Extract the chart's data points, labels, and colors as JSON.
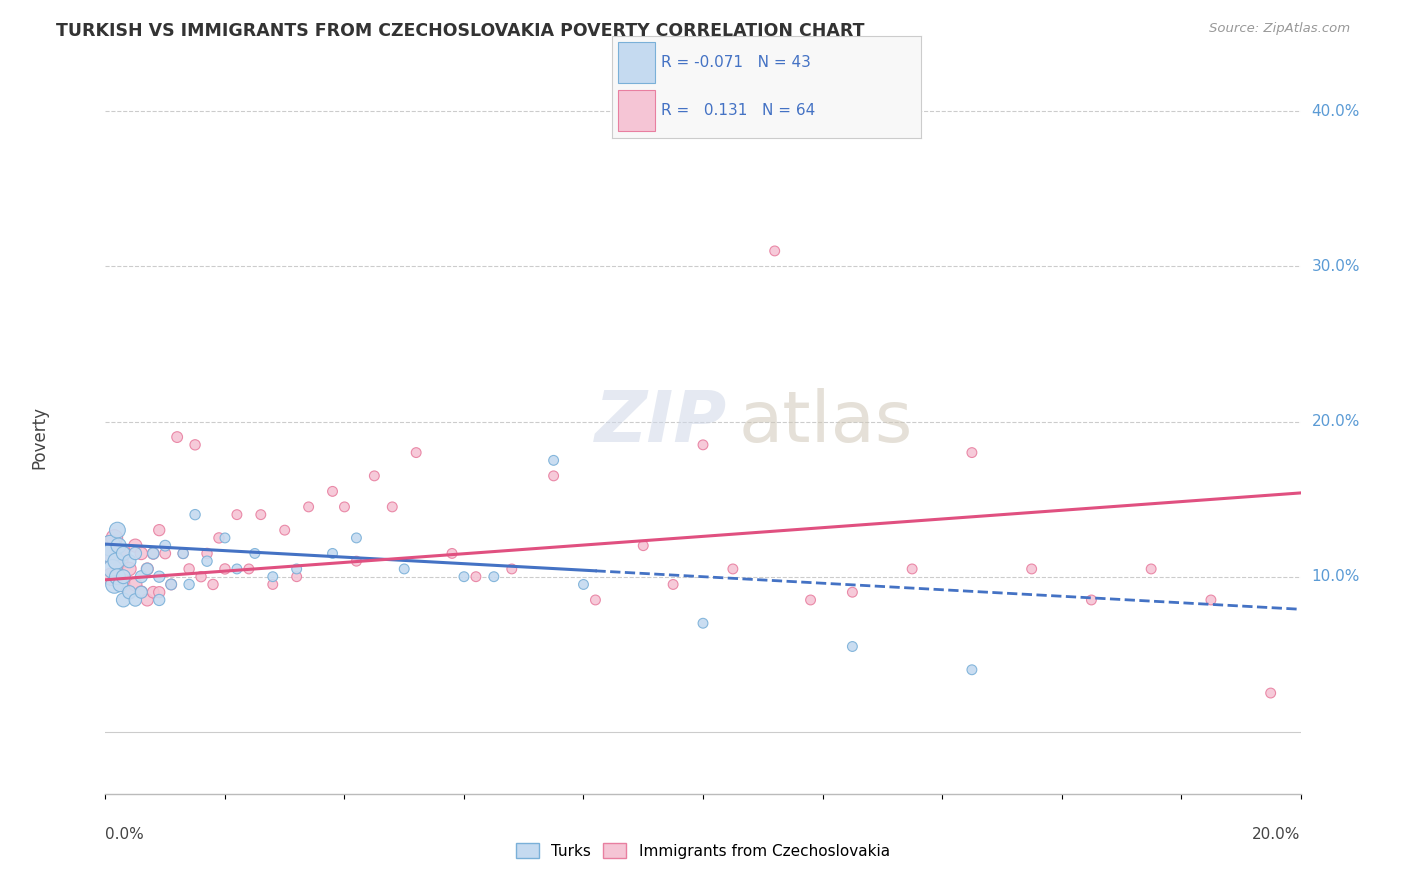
{
  "title": "TURKISH VS IMMIGRANTS FROM CZECHOSLOVAKIA POVERTY CORRELATION CHART",
  "source": "Source: ZipAtlas.com",
  "ylabel": "Poverty",
  "turks_R": -0.071,
  "turks_N": 43,
  "czech_R": 0.131,
  "czech_N": 64,
  "legend_label_turks": "Turks",
  "legend_label_czech": "Immigrants from Czechoslovakia",
  "turks_color": "#c5daf0",
  "turks_edge_color": "#7ab0d8",
  "turks_line_color": "#4472c4",
  "czech_color": "#f5c5d5",
  "czech_edge_color": "#e87fa0",
  "czech_line_color": "#e05080",
  "corr_text_color": "#4472c4",
  "right_tick_color": "#5b9bd5",
  "turks_x": [
    0.0008,
    0.001,
    0.0012,
    0.0015,
    0.0018,
    0.002,
    0.002,
    0.0022,
    0.0025,
    0.003,
    0.003,
    0.003,
    0.004,
    0.004,
    0.005,
    0.005,
    0.006,
    0.006,
    0.007,
    0.008,
    0.009,
    0.009,
    0.01,
    0.011,
    0.013,
    0.014,
    0.015,
    0.017,
    0.02,
    0.022,
    0.025,
    0.028,
    0.032,
    0.038,
    0.042,
    0.05,
    0.06,
    0.065,
    0.075,
    0.08,
    0.1,
    0.125,
    0.145
  ],
  "turks_y": [
    0.12,
    0.115,
    0.105,
    0.095,
    0.11,
    0.13,
    0.1,
    0.12,
    0.095,
    0.115,
    0.1,
    0.085,
    0.11,
    0.09,
    0.115,
    0.085,
    0.1,
    0.09,
    0.105,
    0.115,
    0.1,
    0.085,
    0.12,
    0.095,
    0.115,
    0.095,
    0.14,
    0.11,
    0.125,
    0.105,
    0.115,
    0.1,
    0.105,
    0.115,
    0.125,
    0.105,
    0.1,
    0.1,
    0.175,
    0.095,
    0.07,
    0.055,
    0.04
  ],
  "turks_sizes": [
    220,
    200,
    180,
    160,
    140,
    130,
    130,
    120,
    110,
    100,
    100,
    100,
    90,
    90,
    80,
    80,
    75,
    75,
    70,
    65,
    65,
    65,
    60,
    60,
    55,
    55,
    55,
    55,
    50,
    50,
    50,
    50,
    50,
    50,
    50,
    50,
    50,
    50,
    50,
    50,
    50,
    50,
    50
  ],
  "czech_x": [
    0.0005,
    0.001,
    0.001,
    0.0015,
    0.002,
    0.002,
    0.0025,
    0.003,
    0.003,
    0.004,
    0.004,
    0.005,
    0.005,
    0.006,
    0.006,
    0.007,
    0.007,
    0.008,
    0.008,
    0.009,
    0.009,
    0.01,
    0.011,
    0.012,
    0.013,
    0.014,
    0.015,
    0.016,
    0.017,
    0.018,
    0.019,
    0.02,
    0.022,
    0.024,
    0.026,
    0.028,
    0.03,
    0.032,
    0.034,
    0.038,
    0.04,
    0.042,
    0.045,
    0.048,
    0.052,
    0.058,
    0.062,
    0.068,
    0.075,
    0.082,
    0.09,
    0.095,
    0.1,
    0.105,
    0.112,
    0.118,
    0.125,
    0.135,
    0.145,
    0.155,
    0.165,
    0.175,
    0.185,
    0.195
  ],
  "czech_y": [
    0.115,
    0.12,
    0.1,
    0.125,
    0.115,
    0.1,
    0.11,
    0.115,
    0.095,
    0.105,
    0.09,
    0.12,
    0.095,
    0.115,
    0.09,
    0.105,
    0.085,
    0.115,
    0.09,
    0.13,
    0.09,
    0.115,
    0.095,
    0.19,
    0.115,
    0.105,
    0.185,
    0.1,
    0.115,
    0.095,
    0.125,
    0.105,
    0.14,
    0.105,
    0.14,
    0.095,
    0.13,
    0.1,
    0.145,
    0.155,
    0.145,
    0.11,
    0.165,
    0.145,
    0.18,
    0.115,
    0.1,
    0.105,
    0.165,
    0.085,
    0.12,
    0.095,
    0.185,
    0.105,
    0.31,
    0.085,
    0.09,
    0.105,
    0.18,
    0.105,
    0.085,
    0.105,
    0.085,
    0.025
  ],
  "czech_sizes": [
    180,
    160,
    160,
    140,
    130,
    130,
    120,
    110,
    110,
    95,
    95,
    90,
    90,
    80,
    80,
    75,
    75,
    70,
    70,
    65,
    65,
    60,
    60,
    60,
    55,
    55,
    55,
    55,
    55,
    55,
    55,
    55,
    50,
    50,
    50,
    50,
    50,
    50,
    50,
    50,
    50,
    50,
    50,
    50,
    50,
    50,
    50,
    50,
    50,
    50,
    50,
    50,
    50,
    50,
    50,
    50,
    50,
    50,
    50,
    50,
    50,
    50,
    50,
    50
  ],
  "xlim": [
    0.0,
    0.2
  ],
  "ylim": [
    -0.04,
    0.42
  ],
  "yticks": [
    0.0,
    0.1,
    0.2,
    0.3,
    0.4
  ],
  "ytick_labels": [
    "",
    "10.0%",
    "20.0%",
    "30.0%",
    "40.0%"
  ],
  "background_color": "#ffffff"
}
